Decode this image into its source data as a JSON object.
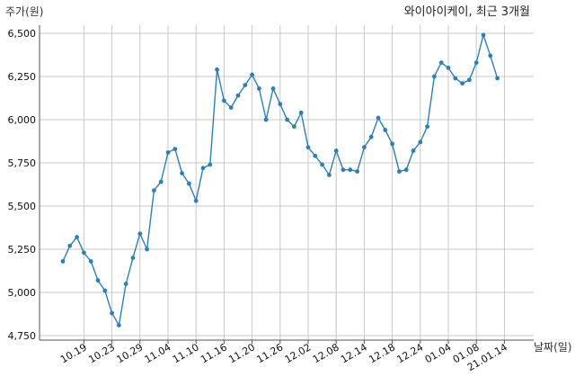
{
  "chart_data": {
    "type": "line",
    "title": "와이아이케이, 최근 3개월",
    "ylabel": "주가(원)",
    "xlabel": "날짜(일)",
    "ylim": [
      4750,
      6500
    ],
    "yticks": [
      4750,
      5000,
      5250,
      5500,
      5750,
      6000,
      6250,
      6500
    ],
    "ytick_labels": [
      "4,750",
      "5,000",
      "5,250",
      "5,500",
      "5,750",
      "6,000",
      "6,250",
      "6,500"
    ],
    "xticks": [
      {
        "index": 3,
        "label": "10.19"
      },
      {
        "index": 7,
        "label": "10.23"
      },
      {
        "index": 11,
        "label": "10.29"
      },
      {
        "index": 15,
        "label": "11.04"
      },
      {
        "index": 19,
        "label": "11.10"
      },
      {
        "index": 23,
        "label": "11.16"
      },
      {
        "index": 27,
        "label": "11.20"
      },
      {
        "index": 31,
        "label": "11.26"
      },
      {
        "index": 35,
        "label": "12.02"
      },
      {
        "index": 39,
        "label": "12.08"
      },
      {
        "index": 43,
        "label": "12.14"
      },
      {
        "index": 47,
        "label": "12.18"
      },
      {
        "index": 51,
        "label": "12.24"
      },
      {
        "index": 55,
        "label": "01.04"
      },
      {
        "index": 59,
        "label": "01.08"
      },
      {
        "index": 63,
        "label": "21.01.14"
      }
    ],
    "grid": true,
    "color": "#2f7fb5",
    "series": [
      {
        "values": [
          5180,
          5270,
          5320,
          5230,
          5180,
          5070,
          5010,
          4880,
          4810,
          5050,
          5200,
          5340,
          5250,
          5590,
          5640,
          5810,
          5830,
          5690,
          5630,
          5530,
          5720,
          5740,
          6290,
          6110,
          6070,
          6140,
          6200,
          6260,
          6180,
          6000,
          6180,
          6090,
          6000,
          5960,
          6040,
          5840,
          5790,
          5740,
          5680,
          5820,
          5710,
          5710,
          5700,
          5840,
          5900,
          6010,
          5940,
          5860,
          5700,
          5710,
          5820,
          5870,
          5960,
          6250,
          6330,
          6300,
          6240,
          6210,
          6230,
          6330,
          6490,
          6370,
          6240
        ]
      }
    ]
  }
}
